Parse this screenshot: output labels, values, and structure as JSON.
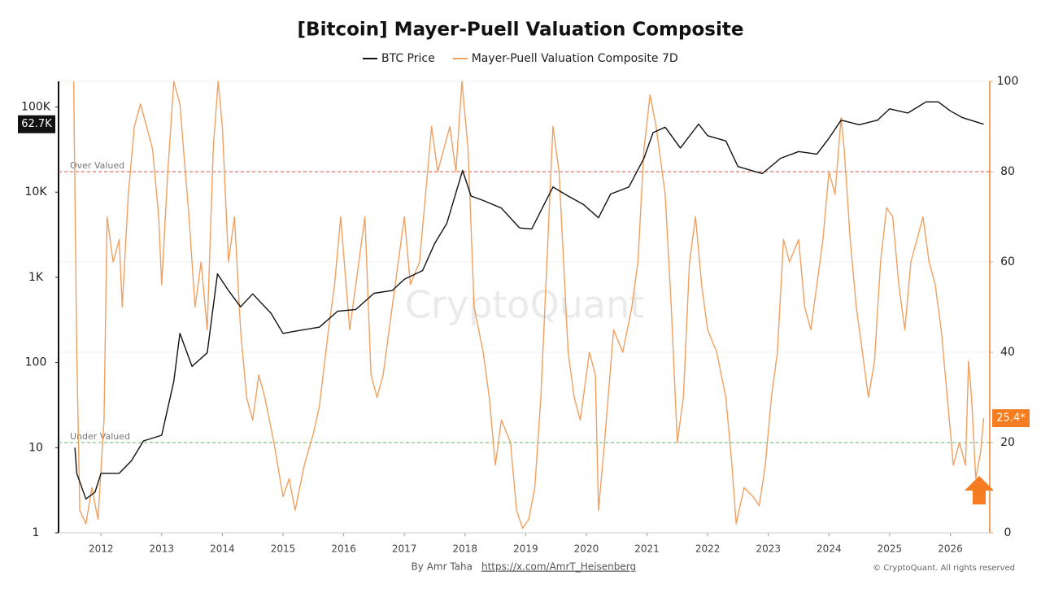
{
  "chart_data": {
    "type": "line",
    "title": "[Bitcoin] Mayer-Puell Valuation Composite",
    "watermark": "CryptoQuant",
    "footer_author": "By Amr Taha",
    "footer_link": "https://x.com/AmrT_Heisenberg",
    "footer_copyright": "© CryptoQuant. All rights reserved",
    "xlim": [
      2011.3,
      2026.65
    ],
    "xticks": [
      2012,
      2013,
      2014,
      2015,
      2016,
      2017,
      2018,
      2019,
      2020,
      2021,
      2022,
      2023,
      2024,
      2025,
      2026
    ],
    "y_scale": "log",
    "ylim": [
      1,
      200000
    ],
    "yticks": [
      1,
      10,
      100,
      {
        "value": 1000,
        "label": "1K"
      },
      {
        "value": 10000,
        "label": "10K"
      },
      {
        "value": 100000,
        "label": "100K"
      }
    ],
    "y2lim": [
      0,
      100
    ],
    "y2ticks": [
      0,
      20,
      40,
      60,
      80,
      100
    ],
    "grid": true,
    "annotations": [
      {
        "text": "Over Valued",
        "value": 80,
        "axis": "y2",
        "color": "#d9534f"
      },
      {
        "text": "Under Valued",
        "value": 20,
        "axis": "y2",
        "color": "#5cb85c"
      }
    ],
    "series": [
      {
        "name": "BTC Price",
        "color": "#111111",
        "last_label": "62.7K",
        "x": [
          2011.57,
          2011.6,
          2011.75,
          2011.9,
          2012.0,
          2012.3,
          2012.5,
          2012.7,
          2013.0,
          2013.2,
          2013.3,
          2013.5,
          2013.75,
          2013.92,
          2014.1,
          2014.3,
          2014.5,
          2014.8,
          2015.0,
          2015.3,
          2015.6,
          2015.9,
          2016.2,
          2016.5,
          2016.8,
          2017.0,
          2017.3,
          2017.5,
          2017.7,
          2017.96,
          2018.1,
          2018.3,
          2018.6,
          2018.9,
          2019.1,
          2019.45,
          2019.7,
          2019.95,
          2020.2,
          2020.4,
          2020.7,
          2020.95,
          2021.1,
          2021.3,
          2021.55,
          2021.85,
          2022.0,
          2022.3,
          2022.5,
          2022.9,
          2023.2,
          2023.5,
          2023.8,
          2024.0,
          2024.2,
          2024.5,
          2024.8,
          2025.0,
          2025.3,
          2025.6,
          2025.8,
          2026.0,
          2026.2,
          2026.55
        ],
        "values": [
          10,
          5,
          2.5,
          3,
          5,
          5,
          7,
          12,
          14,
          60,
          220,
          90,
          130,
          1100,
          700,
          450,
          640,
          380,
          220,
          240,
          260,
          400,
          420,
          650,
          700,
          950,
          1200,
          2500,
          4300,
          18000,
          9000,
          8000,
          6500,
          3800,
          3700,
          11500,
          9000,
          7200,
          5000,
          9500,
          11500,
          25000,
          50000,
          58000,
          33000,
          63000,
          46000,
          40000,
          20000,
          16500,
          25000,
          30000,
          28000,
          43000,
          70000,
          62000,
          70000,
          95000,
          85000,
          115000,
          115000,
          90000,
          75000,
          62700
        ]
      },
      {
        "name": "Mayer-Puell Valuation Composite 7D",
        "color": "#f0a060",
        "axis": "y2",
        "last_label": "25.4*",
        "x": [
          2011.55,
          2011.6,
          2011.65,
          2011.75,
          2011.85,
          2011.95,
          2012.05,
          2012.1,
          2012.2,
          2012.3,
          2012.35,
          2012.45,
          2012.55,
          2012.65,
          2012.75,
          2012.85,
          2012.95,
          2013.0,
          2013.1,
          2013.2,
          2013.3,
          2013.45,
          2013.55,
          2013.65,
          2013.75,
          2013.85,
          2013.93,
          2014.0,
          2014.1,
          2014.2,
          2014.3,
          2014.4,
          2014.5,
          2014.6,
          2014.7,
          2014.85,
          2015.0,
          2015.1,
          2015.2,
          2015.35,
          2015.5,
          2015.6,
          2015.75,
          2015.85,
          2015.95,
          2016.1,
          2016.2,
          2016.35,
          2016.45,
          2016.55,
          2016.65,
          2016.75,
          2016.9,
          2017.0,
          2017.1,
          2017.25,
          2017.35,
          2017.45,
          2017.55,
          2017.65,
          2017.75,
          2017.85,
          2017.95,
          2018.05,
          2018.15,
          2018.3,
          2018.4,
          2018.5,
          2018.6,
          2018.75,
          2018.85,
          2018.95,
          2019.05,
          2019.15,
          2019.25,
          2019.35,
          2019.45,
          2019.55,
          2019.7,
          2019.8,
          2019.9,
          2020.05,
          2020.15,
          2020.2,
          2020.3,
          2020.45,
          2020.6,
          2020.75,
          2020.85,
          2020.95,
          2021.05,
          2021.15,
          2021.3,
          2021.4,
          2021.5,
          2021.6,
          2021.7,
          2021.8,
          2021.9,
          2022.0,
          2022.15,
          2022.3,
          2022.4,
          2022.47,
          2022.6,
          2022.75,
          2022.85,
          2022.95,
          2023.05,
          2023.15,
          2023.25,
          2023.35,
          2023.5,
          2023.6,
          2023.7,
          2023.8,
          2023.9,
          2024.0,
          2024.1,
          2024.2,
          2024.25,
          2024.35,
          2024.45,
          2024.55,
          2024.65,
          2024.75,
          2024.85,
          2024.95,
          2025.05,
          2025.15,
          2025.25,
          2025.35,
          2025.45,
          2025.55,
          2025.65,
          2025.75,
          2025.85,
          2025.95,
          2026.05,
          2026.15,
          2026.25,
          2026.3,
          2026.35,
          2026.42,
          2026.5,
          2026.55
        ],
        "values": [
          100,
          40,
          5,
          2,
          10,
          3,
          25,
          70,
          60,
          65,
          50,
          75,
          90,
          95,
          90,
          85,
          70,
          55,
          80,
          100,
          95,
          70,
          50,
          60,
          45,
          85,
          100,
          90,
          60,
          70,
          45,
          30,
          25,
          35,
          30,
          20,
          8,
          12,
          5,
          15,
          22,
          28,
          45,
          55,
          70,
          45,
          55,
          70,
          35,
          30,
          35,
          45,
          60,
          70,
          55,
          60,
          75,
          90,
          80,
          85,
          90,
          80,
          100,
          85,
          50,
          40,
          30,
          15,
          25,
          20,
          5,
          1,
          3,
          10,
          30,
          60,
          90,
          80,
          40,
          30,
          25,
          40,
          35,
          5,
          20,
          45,
          40,
          50,
          60,
          85,
          97,
          90,
          75,
          50,
          20,
          30,
          60,
          70,
          55,
          45,
          40,
          30,
          15,
          2,
          10,
          8,
          6,
          15,
          30,
          40,
          65,
          60,
          65,
          50,
          45,
          55,
          65,
          80,
          75,
          92,
          85,
          65,
          50,
          40,
          30,
          38,
          60,
          72,
          70,
          55,
          45,
          60,
          65,
          70,
          60,
          55,
          45,
          30,
          15,
          20,
          15,
          38,
          30,
          12,
          18,
          25.4
        ]
      }
    ]
  }
}
